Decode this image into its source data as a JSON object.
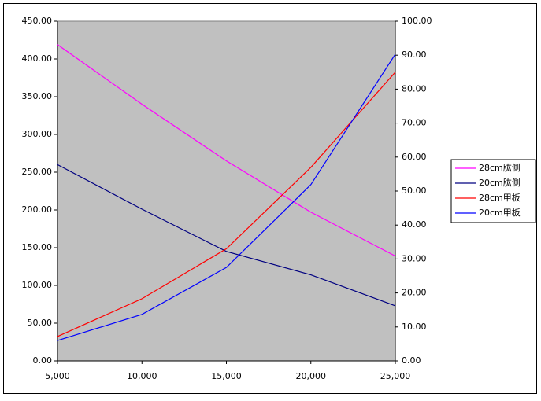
{
  "chart_data": {
    "type": "line",
    "x": [
      5000,
      10000,
      15000,
      20000,
      25000
    ],
    "xlim": [
      5000,
      25000
    ],
    "xticks": [
      {
        "value": 5000,
        "label": "5,000"
      },
      {
        "value": 10000,
        "label": "10,000"
      },
      {
        "value": 15000,
        "label": "15,000"
      },
      {
        "value": 20000,
        "label": "20,000"
      },
      {
        "value": 25000,
        "label": "25,000"
      }
    ],
    "ylim": [
      0,
      450
    ],
    "yticks": [
      {
        "value": 0,
        "label": "0.00"
      },
      {
        "value": 50,
        "label": "50.00"
      },
      {
        "value": 100,
        "label": "100.00"
      },
      {
        "value": 150,
        "label": "150.00"
      },
      {
        "value": 200,
        "label": "200.00"
      },
      {
        "value": 250,
        "label": "250.00"
      },
      {
        "value": 300,
        "label": "300.00"
      },
      {
        "value": 350,
        "label": "350.00"
      },
      {
        "value": 400,
        "label": "400.00"
      },
      {
        "value": 450,
        "label": "450.00"
      }
    ],
    "y2lim": [
      0,
      100
    ],
    "y2ticks": [
      {
        "value": 0,
        "label": "0.00"
      },
      {
        "value": 10,
        "label": "10.00"
      },
      {
        "value": 20,
        "label": "20.00"
      },
      {
        "value": 30,
        "label": "30.00"
      },
      {
        "value": 40,
        "label": "40.00"
      },
      {
        "value": 50,
        "label": "50.00"
      },
      {
        "value": 60,
        "label": "60.00"
      },
      {
        "value": 70,
        "label": "70.00"
      },
      {
        "value": 80,
        "label": "80.00"
      },
      {
        "value": 90,
        "label": "90.00"
      },
      {
        "value": 100,
        "label": "100.00"
      }
    ],
    "background": "#c0c0c0",
    "legend": "right",
    "series": [
      {
        "name": "28cm肱側",
        "color": "#ff00ff",
        "values": [
          419,
          340,
          265,
          197,
          139
        ]
      },
      {
        "name": "20cm肱側",
        "color": "#000080",
        "values": [
          260,
          201,
          145,
          114,
          73
        ]
      },
      {
        "name": "28cm甲板",
        "color": "#ff0000",
        "axis": "y2",
        "values": [
          7.2,
          18.3,
          33,
          57,
          85
        ]
      },
      {
        "name": "20cm甲板",
        "color": "#0000ff",
        "axis": "y2",
        "values": [
          6,
          13.7,
          27.5,
          51.9,
          90.3
        ]
      }
    ]
  }
}
